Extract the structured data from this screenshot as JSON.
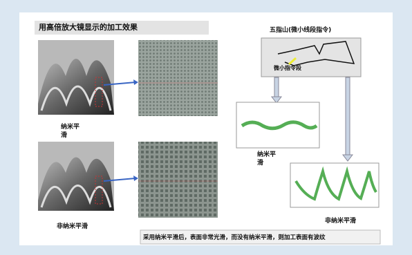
{
  "header": {
    "title": "用高倍放大镜显示的加工效果"
  },
  "left": {
    "top_label": "纳米平滑",
    "bottom_label": "非纳米平滑"
  },
  "right": {
    "diagram_title": "五指山(微小线段指令)",
    "diagram_note": "微小指令段",
    "chart1_label": "纳米平滑",
    "chart2_label": "非纳米平滑"
  },
  "caption": "采用纳米平滑后，表面非常光滑，而没有纳米平滑，则加工表面有波纹"
}
